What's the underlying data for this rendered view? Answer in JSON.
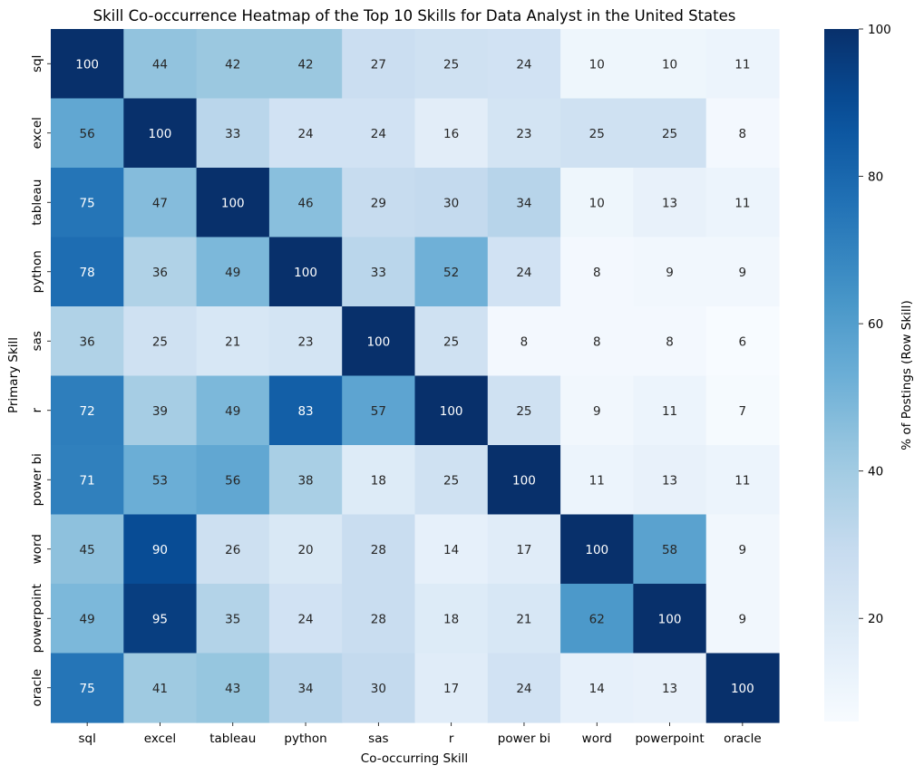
{
  "chart_data": {
    "type": "heatmap",
    "title": "Skill Co-occurrence Heatmap of the Top 10 Skills for Data Analyst in the United States",
    "xlabel": "Co-occurring Skill",
    "ylabel": "Primary Skill",
    "colorbar_label": "% of Postings (Row Skill)",
    "colorbar_ticks": [
      20,
      40,
      60,
      80,
      100
    ],
    "colorbar_range": [
      6,
      100
    ],
    "colormap": "Blues",
    "x_categories": [
      "sql",
      "excel",
      "tableau",
      "python",
      "sas",
      "r",
      "power bi",
      "word",
      "powerpoint",
      "oracle"
    ],
    "y_categories": [
      "sql",
      "excel",
      "tableau",
      "python",
      "sas",
      "r",
      "power bi",
      "word",
      "powerpoint",
      "oracle"
    ],
    "values": [
      [
        100,
        44,
        42,
        42,
        27,
        25,
        24,
        10,
        10,
        11
      ],
      [
        56,
        100,
        33,
        24,
        24,
        16,
        23,
        25,
        25,
        8
      ],
      [
        75,
        47,
        100,
        46,
        29,
        30,
        34,
        10,
        13,
        11
      ],
      [
        78,
        36,
        49,
        100,
        33,
        52,
        24,
        8,
        9,
        9
      ],
      [
        36,
        25,
        21,
        23,
        100,
        25,
        8,
        8,
        8,
        6
      ],
      [
        72,
        39,
        49,
        83,
        57,
        100,
        25,
        9,
        11,
        7
      ],
      [
        71,
        53,
        56,
        38,
        18,
        25,
        100,
        11,
        13,
        11
      ],
      [
        45,
        90,
        26,
        20,
        28,
        14,
        17,
        100,
        58,
        9
      ],
      [
        49,
        95,
        35,
        24,
        28,
        18,
        21,
        62,
        100,
        9
      ],
      [
        75,
        41,
        43,
        34,
        30,
        17,
        24,
        14,
        13,
        100
      ]
    ]
  }
}
